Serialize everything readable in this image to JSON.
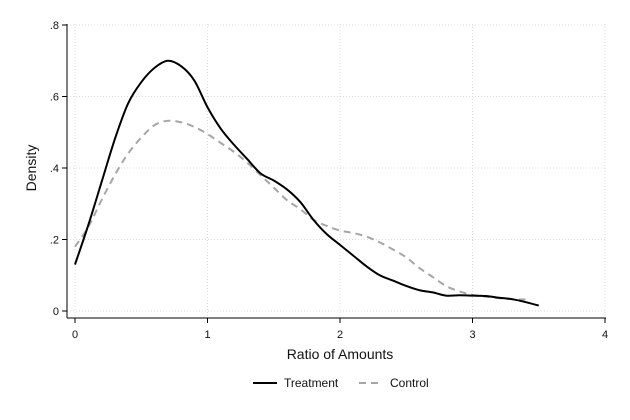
{
  "chart_data": {
    "type": "line",
    "title": "",
    "xlabel": "Ratio of Amounts",
    "ylabel": "Density",
    "xlim": [
      0,
      4
    ],
    "ylim": [
      0,
      0.8
    ],
    "grid": true,
    "legend": "bottom",
    "x_ticks": [
      {
        "value": 0,
        "label": "0"
      },
      {
        "value": 1,
        "label": "1"
      },
      {
        "value": 2,
        "label": "2"
      },
      {
        "value": 3,
        "label": "3"
      },
      {
        "value": 4,
        "label": "4"
      }
    ],
    "y_ticks": [
      {
        "value": 0,
        "label": "0"
      },
      {
        "value": 0.2,
        "label": ".2"
      },
      {
        "value": 0.4,
        "label": ".4"
      },
      {
        "value": 0.6,
        "label": ".6"
      },
      {
        "value": 0.8,
        "label": ".8"
      }
    ],
    "series": [
      {
        "name": "Treatment",
        "color": "#000000",
        "dash": "solid",
        "points": [
          [
            0.0,
            0.13
          ],
          [
            0.1,
            0.24
          ],
          [
            0.2,
            0.36
          ],
          [
            0.3,
            0.48
          ],
          [
            0.4,
            0.58
          ],
          [
            0.5,
            0.64
          ],
          [
            0.6,
            0.68
          ],
          [
            0.7,
            0.7
          ],
          [
            0.8,
            0.685
          ],
          [
            0.9,
            0.645
          ],
          [
            1.0,
            0.57
          ],
          [
            1.1,
            0.51
          ],
          [
            1.2,
            0.465
          ],
          [
            1.3,
            0.425
          ],
          [
            1.4,
            0.385
          ],
          [
            1.5,
            0.365
          ],
          [
            1.6,
            0.34
          ],
          [
            1.7,
            0.305
          ],
          [
            1.8,
            0.255
          ],
          [
            1.9,
            0.215
          ],
          [
            2.0,
            0.185
          ],
          [
            2.1,
            0.155
          ],
          [
            2.2,
            0.125
          ],
          [
            2.3,
            0.1
          ],
          [
            2.4,
            0.085
          ],
          [
            2.5,
            0.07
          ],
          [
            2.6,
            0.058
          ],
          [
            2.7,
            0.052
          ],
          [
            2.8,
            0.043
          ],
          [
            2.9,
            0.044
          ],
          [
            3.0,
            0.043
          ],
          [
            3.1,
            0.042
          ],
          [
            3.2,
            0.037
          ],
          [
            3.3,
            0.033
          ],
          [
            3.4,
            0.025
          ],
          [
            3.5,
            0.015
          ]
        ]
      },
      {
        "name": "Control",
        "color": "#a6a6a6",
        "dash": "dashed",
        "points": [
          [
            0.0,
            0.18
          ],
          [
            0.1,
            0.235
          ],
          [
            0.2,
            0.31
          ],
          [
            0.3,
            0.38
          ],
          [
            0.4,
            0.44
          ],
          [
            0.5,
            0.485
          ],
          [
            0.6,
            0.52
          ],
          [
            0.7,
            0.532
          ],
          [
            0.8,
            0.528
          ],
          [
            0.9,
            0.515
          ],
          [
            1.0,
            0.495
          ],
          [
            1.1,
            0.47
          ],
          [
            1.2,
            0.445
          ],
          [
            1.3,
            0.415
          ],
          [
            1.4,
            0.38
          ],
          [
            1.5,
            0.345
          ],
          [
            1.6,
            0.31
          ],
          [
            1.7,
            0.285
          ],
          [
            1.8,
            0.255
          ],
          [
            1.9,
            0.238
          ],
          [
            2.0,
            0.225
          ],
          [
            2.1,
            0.218
          ],
          [
            2.2,
            0.208
          ],
          [
            2.3,
            0.192
          ],
          [
            2.4,
            0.172
          ],
          [
            2.5,
            0.15
          ],
          [
            2.6,
            0.12
          ],
          [
            2.7,
            0.095
          ],
          [
            2.8,
            0.07
          ],
          [
            2.9,
            0.055
          ],
          [
            3.0,
            0.045
          ],
          [
            3.1,
            0.04
          ],
          [
            3.2,
            0.036
          ],
          [
            3.3,
            0.033
          ],
          [
            3.4,
            0.032
          ]
        ]
      }
    ]
  }
}
